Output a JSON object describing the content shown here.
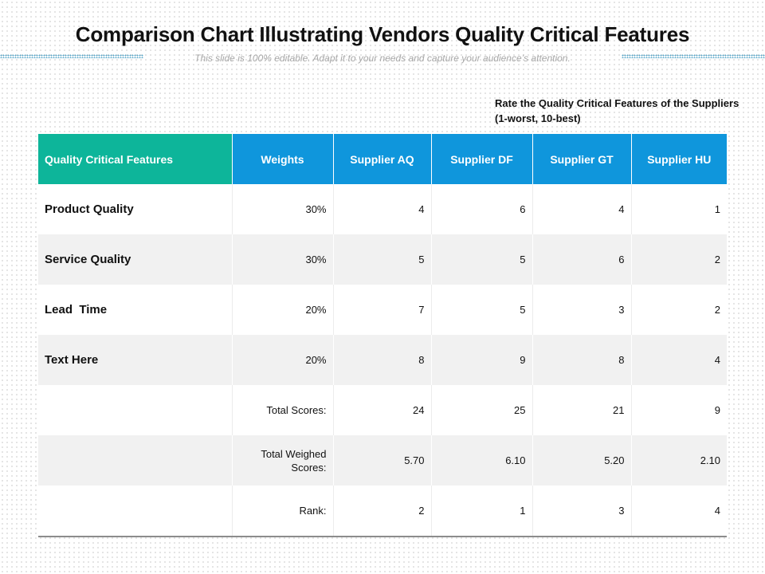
{
  "title": "Comparison Chart Illustrating Vendors Quality Critical Features",
  "subtitle": "This slide is 100% editable. Adapt it to your needs and capture your audience’s attention.",
  "note": {
    "line1": "Rate the Quality Critical Features of the Suppliers",
    "line2": "(1-worst, 10-best)"
  },
  "table": {
    "headers": [
      "Quality Critical Features",
      "Weights",
      "Supplier AQ",
      "Supplier DF",
      "Supplier GT",
      "Supplier HU"
    ],
    "rows": [
      [
        "Product Quality",
        "30%",
        "4",
        "6",
        "4",
        "1"
      ],
      [
        "Service Quality",
        "30%",
        "5",
        "5",
        "6",
        "2"
      ],
      [
        "Lead  Time",
        "20%",
        "7",
        "5",
        "3",
        "2"
      ],
      [
        "Text Here",
        "20%",
        "8",
        "9",
        "8",
        "4"
      ]
    ],
    "total_scores": {
      "label": "Total Scores:",
      "values": [
        "24",
        "25",
        "21",
        "9"
      ]
    },
    "total_weighed": {
      "label_line1": "Total Weighed",
      "label_line2": "Scores:",
      "values": [
        "5.70",
        "6.10",
        "5.20",
        "2.10"
      ]
    },
    "rank": {
      "label": "Rank:",
      "values": [
        "2",
        "1",
        "3",
        "4"
      ]
    }
  },
  "colors": {
    "header_teal": "#0db59a",
    "header_blue": "#0f96dc",
    "row_grey": "#f1f1f1"
  }
}
